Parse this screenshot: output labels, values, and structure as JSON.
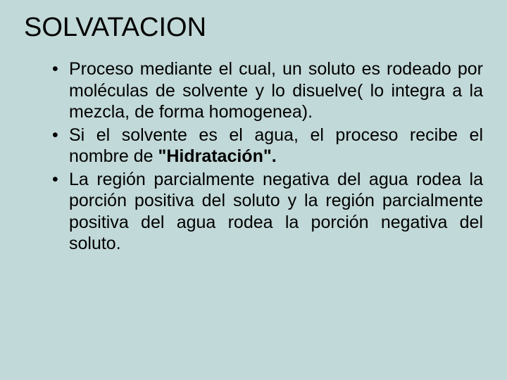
{
  "background_color": "#c1d9d8",
  "text_color": "#000000",
  "title": {
    "text": "SOLVATACION",
    "font_size": 38,
    "font_weight": "normal"
  },
  "body_font_size": 25,
  "line_height": 1.22,
  "text_align": "justify",
  "bullets": [
    {
      "text": "Proceso mediante el cual, un soluto es rodeado por moléculas de solvente y lo disuelve( lo integra a la mezcla, de forma homogenea)."
    },
    {
      "text_before": "Si el solvente es el agua, el proceso recibe el nombre de ",
      "bold_text": "\"Hidratación\".",
      "text_after": ""
    },
    {
      "text": "La región  parcialmente negativa del agua rodea la porción positiva del soluto y la región parcialmente positiva del agua rodea la porción negativa del  soluto."
    }
  ]
}
